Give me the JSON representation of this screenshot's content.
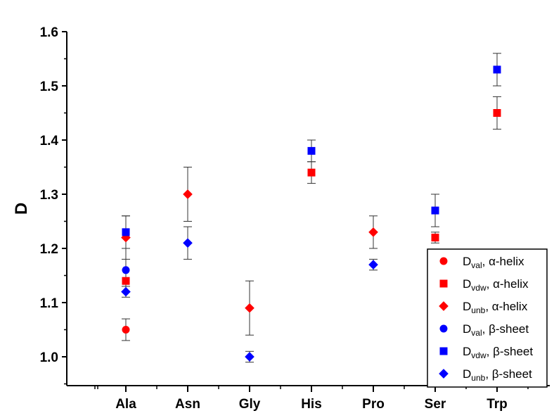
{
  "chart_data": {
    "type": "scatter",
    "title": "",
    "xlabel": "",
    "ylabel": "D",
    "ylim": [
      0.95,
      1.6
    ],
    "yticks": [
      1.0,
      1.1,
      1.2,
      1.3,
      1.4,
      1.5,
      1.6
    ],
    "ytick_labels": [
      "1.0",
      "1.1",
      "1.2",
      "1.3",
      "1.4",
      "1.5",
      "1.6"
    ],
    "categories": [
      "Ala",
      "Asn",
      "Gly",
      "His",
      "Pro",
      "Ser",
      "Trp"
    ],
    "grid": false,
    "legend_position": "bottom-right",
    "series": [
      {
        "legend_main": "D",
        "legend_sub": "val",
        "legend_tail": ", α-helix",
        "color": "#ff0000",
        "marker": "circle",
        "points": [
          {
            "category": "Ala",
            "y": 1.05,
            "err": 0.02
          }
        ]
      },
      {
        "legend_main": "D",
        "legend_sub": "vdw",
        "legend_tail": ", α-helix",
        "color": "#ff0000",
        "marker": "square",
        "points": [
          {
            "category": "Ala",
            "y": 1.14,
            "err": 0.0
          },
          {
            "category": "His",
            "y": 1.34,
            "err": 0.02
          },
          {
            "category": "Ser",
            "y": 1.22,
            "err": 0.01
          },
          {
            "category": "Trp",
            "y": 1.45,
            "err": 0.03
          }
        ]
      },
      {
        "legend_main": "D",
        "legend_sub": "unb",
        "legend_tail": ", α-helix",
        "color": "#ff0000",
        "marker": "diamond",
        "points": [
          {
            "category": "Ala",
            "y": 1.22,
            "err": 0.04
          },
          {
            "category": "Asn",
            "y": 1.3,
            "err": 0.05
          },
          {
            "category": "Gly",
            "y": 1.09,
            "err": 0.05
          },
          {
            "category": "Pro",
            "y": 1.23,
            "err": 0.03
          }
        ]
      },
      {
        "legend_main": "D",
        "legend_sub": "val",
        "legend_tail": ", β-sheet",
        "color": "#0000ff",
        "marker": "circle",
        "points": [
          {
            "category": "Ala",
            "y": 1.16,
            "err": 0.04
          }
        ]
      },
      {
        "legend_main": "D",
        "legend_sub": "vdw",
        "legend_tail": ", β-sheet",
        "color": "#0000ff",
        "marker": "square",
        "points": [
          {
            "category": "Ala",
            "y": 1.23,
            "err": 0.03
          },
          {
            "category": "His",
            "y": 1.38,
            "err": 0.02
          },
          {
            "category": "Ser",
            "y": 1.27,
            "err": 0.03
          },
          {
            "category": "Trp",
            "y": 1.53,
            "err": 0.03
          }
        ]
      },
      {
        "legend_main": "D",
        "legend_sub": "unb",
        "legend_tail": ", β-sheet",
        "color": "#0000ff",
        "marker": "diamond",
        "points": [
          {
            "category": "Ala",
            "y": 1.12,
            "err": 0.01
          },
          {
            "category": "Asn",
            "y": 1.21,
            "err": 0.03
          },
          {
            "category": "Gly",
            "y": 1.0,
            "err": 0.01
          },
          {
            "category": "Pro",
            "y": 1.17,
            "err": 0.01
          }
        ]
      }
    ]
  }
}
